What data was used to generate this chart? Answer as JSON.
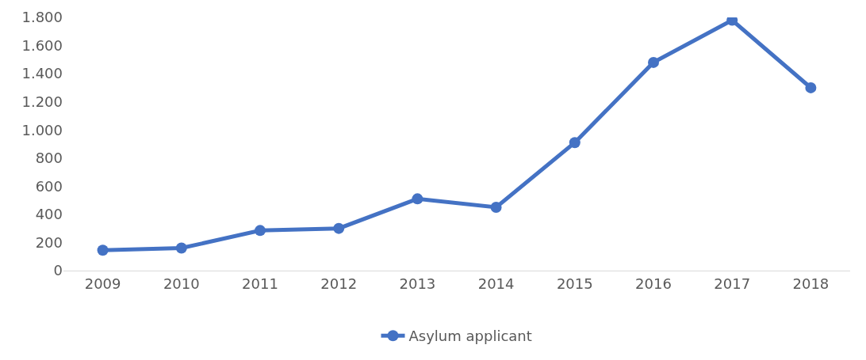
{
  "chart_data": {
    "type": "line",
    "categories": [
      "2009",
      "2010",
      "2011",
      "2012",
      "2013",
      "2014",
      "2015",
      "2016",
      "2017",
      "2018"
    ],
    "series": [
      {
        "name": "Asylum applicant",
        "color": "#4472c4",
        "values": [
          145,
          160,
          285,
          300,
          510,
          450,
          910,
          1480,
          1780,
          1300
        ]
      }
    ],
    "ylim": [
      0,
      1800
    ],
    "yticks": [
      0,
      200,
      400,
      600,
      800,
      {
        "value": 1000,
        "label": "1.000"
      },
      {
        "value": 1200,
        "label": "1.200"
      },
      {
        "value": 1400,
        "label": "1.400"
      },
      {
        "value": 1600,
        "label": "1.600"
      },
      {
        "value": 1800,
        "label": "1.800"
      }
    ],
    "grid": false,
    "legend": "bottom",
    "marker": "circle",
    "line_style": "solid"
  }
}
